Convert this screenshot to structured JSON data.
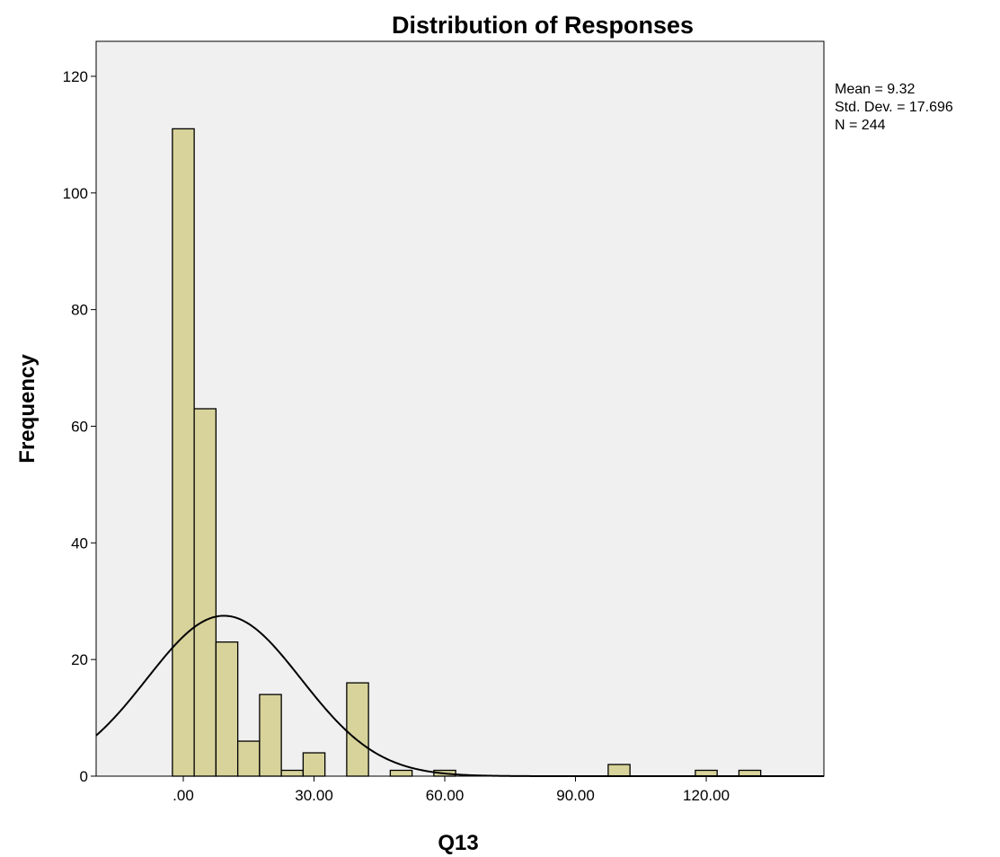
{
  "chart_data": {
    "type": "bar",
    "title": "Distribution of Responses",
    "xlabel": "Q13",
    "ylabel": "Frequency",
    "xlim": [
      -20,
      147
    ],
    "ylim": [
      0,
      126
    ],
    "x_ticks": [
      {
        "value": 0,
        "label": ".00"
      },
      {
        "value": 30,
        "label": "30.00"
      },
      {
        "value": 60,
        "label": "60.00"
      },
      {
        "value": 90,
        "label": "90.00"
      },
      {
        "value": 120,
        "label": "120.00"
      }
    ],
    "y_ticks": [
      0,
      20,
      40,
      60,
      80,
      100,
      120
    ],
    "bin_width": 5,
    "bins": [
      {
        "start": -2.5,
        "end": 2.5,
        "count": 111
      },
      {
        "start": 2.5,
        "end": 7.5,
        "count": 63
      },
      {
        "start": 7.5,
        "end": 12.5,
        "count": 23
      },
      {
        "start": 12.5,
        "end": 17.5,
        "count": 6
      },
      {
        "start": 17.5,
        "end": 22.5,
        "count": 14
      },
      {
        "start": 22.5,
        "end": 27.5,
        "count": 1
      },
      {
        "start": 27.5,
        "end": 32.5,
        "count": 4
      },
      {
        "start": 37.5,
        "end": 42.5,
        "count": 16
      },
      {
        "start": 47.5,
        "end": 52.5,
        "count": 1
      },
      {
        "start": 57.5,
        "end": 62.5,
        "count": 1
      },
      {
        "start": 97.5,
        "end": 102.5,
        "count": 2
      },
      {
        "start": 117.5,
        "end": 122.5,
        "count": 1
      },
      {
        "start": 127.5,
        "end": 132.5,
        "count": 1
      }
    ],
    "normal_curve": {
      "mean": 9.32,
      "std": 17.696,
      "n": 244
    },
    "stats_lines": [
      "Mean = 9.32",
      "Std. Dev. = 17.696",
      "N = 244"
    ],
    "grid": false,
    "colors": {
      "bar_fill": "#d7d39b",
      "bar_stroke": "#000000",
      "plot_bg": "#f0f0f0",
      "curve": "#000000"
    }
  }
}
